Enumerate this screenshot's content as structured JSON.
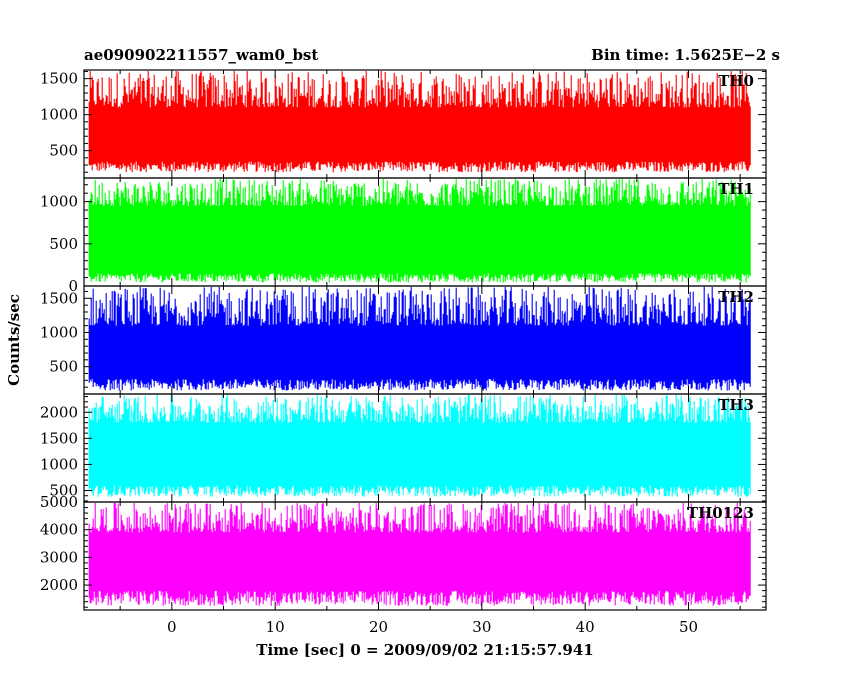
{
  "chart_data": {
    "type": "line",
    "title_left": "ae090902211557_wam0_bst",
    "title_right": "Bin time: 1.5625E−2 s",
    "xlabel": "Time [sec] 0 = 2009/09/02 21:15:57.941",
    "ylabel": "Counts/sec",
    "xlim": [
      -8.5,
      57.5
    ],
    "data_x_range": [
      -8,
      56
    ],
    "x_ticks": [
      0,
      10,
      20,
      30,
      40,
      50
    ],
    "grid": false,
    "panels": [
      {
        "name": "TH0",
        "color": "#ff0000",
        "ylim": [
          120,
          1620
        ],
        "y_ticks": [
          500,
          1000,
          1500
        ],
        "level": 700,
        "low_band": [
          200,
          350
        ],
        "high_band": [
          1100,
          1620
        ]
      },
      {
        "name": "TH1",
        "color": "#00ff00",
        "ylim": [
          0,
          1280
        ],
        "y_ticks": [
          0,
          500,
          1000
        ],
        "level": 600,
        "low_band": [
          40,
          150
        ],
        "high_band": [
          950,
          1280
        ]
      },
      {
        "name": "TH2",
        "color": "#0000ff",
        "ylim": [
          100,
          1680
        ],
        "y_ticks": [
          500,
          1000,
          1500
        ],
        "level": 700,
        "low_band": [
          150,
          320
        ],
        "high_band": [
          1100,
          1680
        ]
      },
      {
        "name": "TH3",
        "color": "#00ffff",
        "ylim": [
          280,
          2350
        ],
        "y_ticks": [
          500,
          1000,
          1500,
          2000
        ],
        "level": 1300,
        "low_band": [
          380,
          600
        ],
        "high_band": [
          1800,
          2350
        ]
      },
      {
        "name": "TH0123",
        "color": "#ff00ff",
        "ylim": [
          1100,
          5000
        ],
        "y_ticks": [
          2000,
          3000,
          4000,
          5000
        ],
        "level": 3000,
        "low_band": [
          1250,
          1800
        ],
        "high_band": [
          3900,
          5000
        ]
      }
    ]
  }
}
